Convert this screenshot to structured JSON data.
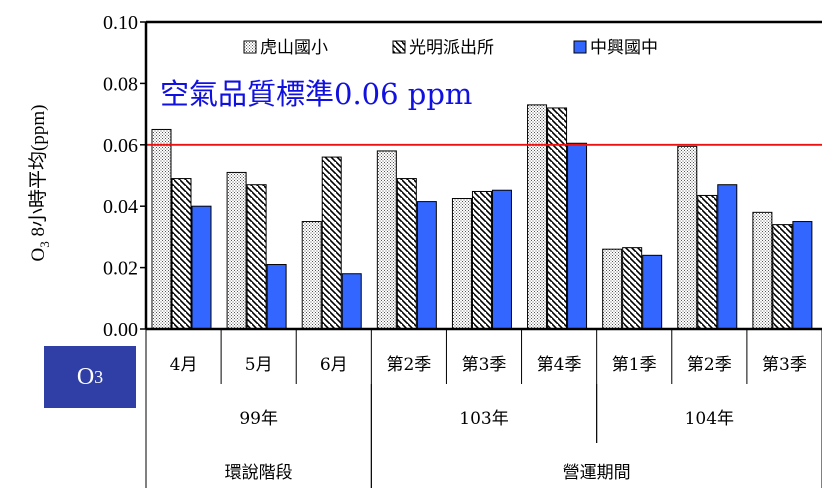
{
  "chart_data": {
    "type": "bar",
    "ylabel": "O3 8小時平均(ppm)",
    "ylabel_main": "O",
    "ylabel_sub": "3",
    "ylabel_rest": " 8小時平均(ppm)",
    "ylim": [
      0,
      0.1
    ],
    "yticks": [
      "0.00",
      "0.02",
      "0.04",
      "0.06",
      "0.08",
      "0.10"
    ],
    "yticks_values": [
      0,
      0.02,
      0.04,
      0.06,
      0.08,
      0.1
    ],
    "categories": [
      "4月",
      "5月",
      "6月",
      "第2季",
      "第3季",
      "第4季",
      "第1季",
      "第2季",
      "第3季"
    ],
    "groups_level1": [
      {
        "label": "99年",
        "span": [
          0,
          3
        ]
      },
      {
        "label": "103年",
        "span": [
          3,
          6
        ]
      },
      {
        "label": "104年",
        "span": [
          6,
          9
        ]
      }
    ],
    "groups_level2": [
      {
        "label": "環說階段",
        "span": [
          0,
          3
        ]
      },
      {
        "label": "營運期間",
        "span": [
          3,
          9
        ]
      }
    ],
    "series": [
      {
        "name": "虎山國小",
        "pattern": "dots",
        "values": [
          0.065,
          0.051,
          0.035,
          0.058,
          0.0425,
          0.073,
          0.026,
          0.0595,
          0.038
        ]
      },
      {
        "name": "光明派出所",
        "pattern": "hatch",
        "values": [
          0.049,
          0.047,
          0.056,
          0.049,
          0.0448,
          0.072,
          0.0265,
          0.0435,
          0.034
        ]
      },
      {
        "name": "中興國中",
        "pattern": "solid",
        "color": "#3366ff",
        "values": [
          0.04,
          0.021,
          0.018,
          0.0415,
          0.0452,
          0.0605,
          0.024,
          0.047,
          0.035
        ]
      }
    ],
    "standard": {
      "value": 0.06,
      "label": "空氣品質標準0.06 ppm",
      "color": "#ee1111"
    },
    "legend_placement": "top",
    "grid": false
  },
  "badge": {
    "main": "O",
    "sub": "3"
  }
}
